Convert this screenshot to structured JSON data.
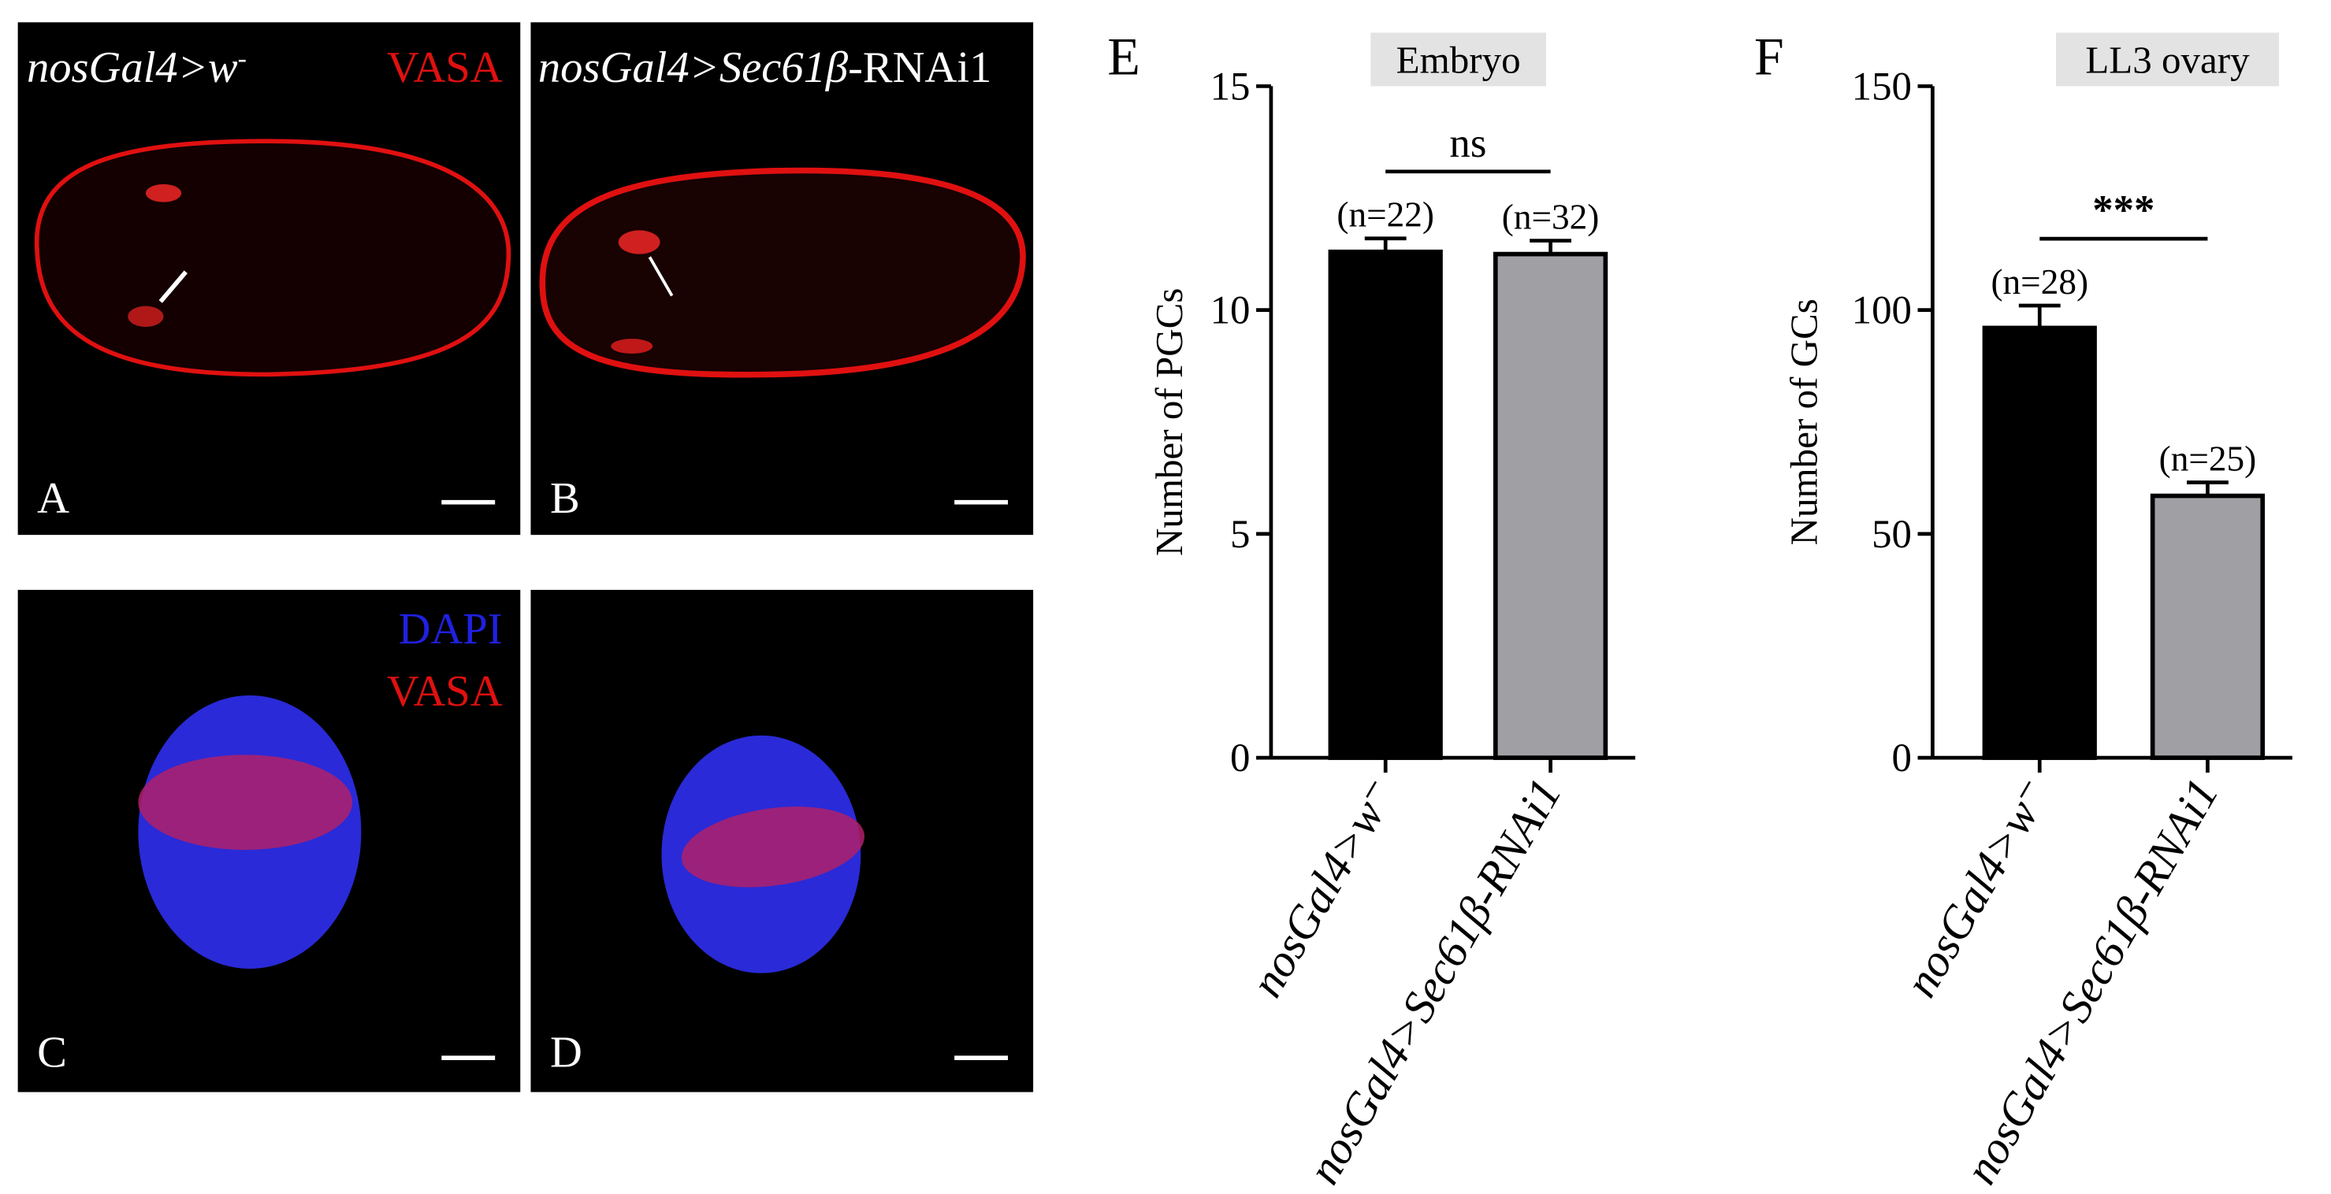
{
  "images": [
    {
      "letter": "A",
      "genotype": "nosGal4>w",
      "genotype_sup": "-",
      "stain": "VASA"
    },
    {
      "letter": "B",
      "genotype": "nosGal4>Sec61β",
      "genotype_suffix": "-RNAi1"
    },
    {
      "letter": "C",
      "stain": "DAPI",
      "stain2": "VASA"
    },
    {
      "letter": "D"
    }
  ],
  "chart_data": [
    {
      "type": "bar",
      "panel": "E",
      "title": "Embryo",
      "y_label": "Number of PGCs",
      "categories": [
        "nosGal4>w⁻",
        "nosGal4>Sec61β-RNAi1"
      ],
      "values": [
        11.3,
        11.25
      ],
      "errors": [
        0.3,
        0.3
      ],
      "bar_labels": [
        "(n=22)",
        "(n=32)"
      ],
      "colors": [
        "#000000",
        "#a0a0a4"
      ],
      "annotation": "ns",
      "ylim": [
        0,
        15
      ],
      "yticks": [
        0,
        5,
        10,
        15
      ]
    },
    {
      "type": "bar",
      "panel": "F",
      "title": "LL3 ovary",
      "y_label": "Number of GCs",
      "categories": [
        "nosGal4>w⁻",
        "nosGal4>Sec61β-RNAi1"
      ],
      "values": [
        96,
        58.5
      ],
      "errors": [
        5,
        3
      ],
      "bar_labels": [
        "(n=28)",
        "(n=25)"
      ],
      "colors": [
        "#000000",
        "#a0a0a4"
      ],
      "annotation": "***",
      "ylim": [
        0,
        150
      ],
      "yticks": [
        0,
        50,
        100,
        150
      ]
    }
  ]
}
